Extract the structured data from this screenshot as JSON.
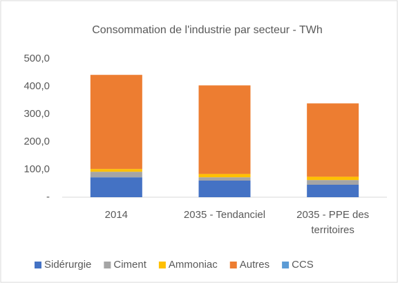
{
  "chart_data": {
    "type": "stacked_bar",
    "title": "Consommation de l'industrie par secteur - TWh",
    "categories": [
      "2014",
      "2035 - Tendanciel",
      "2035 - PPE des territoires"
    ],
    "series": [
      {
        "name": "Sidérurgie",
        "color": "#4472c4",
        "values": [
          72,
          60,
          45
        ]
      },
      {
        "name": "Ciment",
        "color": "#a5a5a5",
        "values": [
          20,
          12,
          17
        ]
      },
      {
        "name": "Ammoniac",
        "color": "#ffc000",
        "values": [
          10,
          12,
          12
        ]
      },
      {
        "name": "Autres",
        "color": "#ed7d31",
        "values": [
          340,
          320,
          265
        ]
      },
      {
        "name": "CCS",
        "color": "#5b9bd5",
        "values": [
          0,
          0,
          0
        ]
      }
    ],
    "ylim": [
      0,
      500
    ],
    "yticks": [
      {
        "value": 0,
        "label": "-"
      },
      {
        "value": 100,
        "label": "100,0"
      },
      {
        "value": 200,
        "label": "200,0"
      },
      {
        "value": 300,
        "label": "300,0"
      },
      {
        "value": 400,
        "label": "400,0"
      },
      {
        "value": 500,
        "label": "500,0"
      }
    ],
    "legend": "bottom"
  }
}
